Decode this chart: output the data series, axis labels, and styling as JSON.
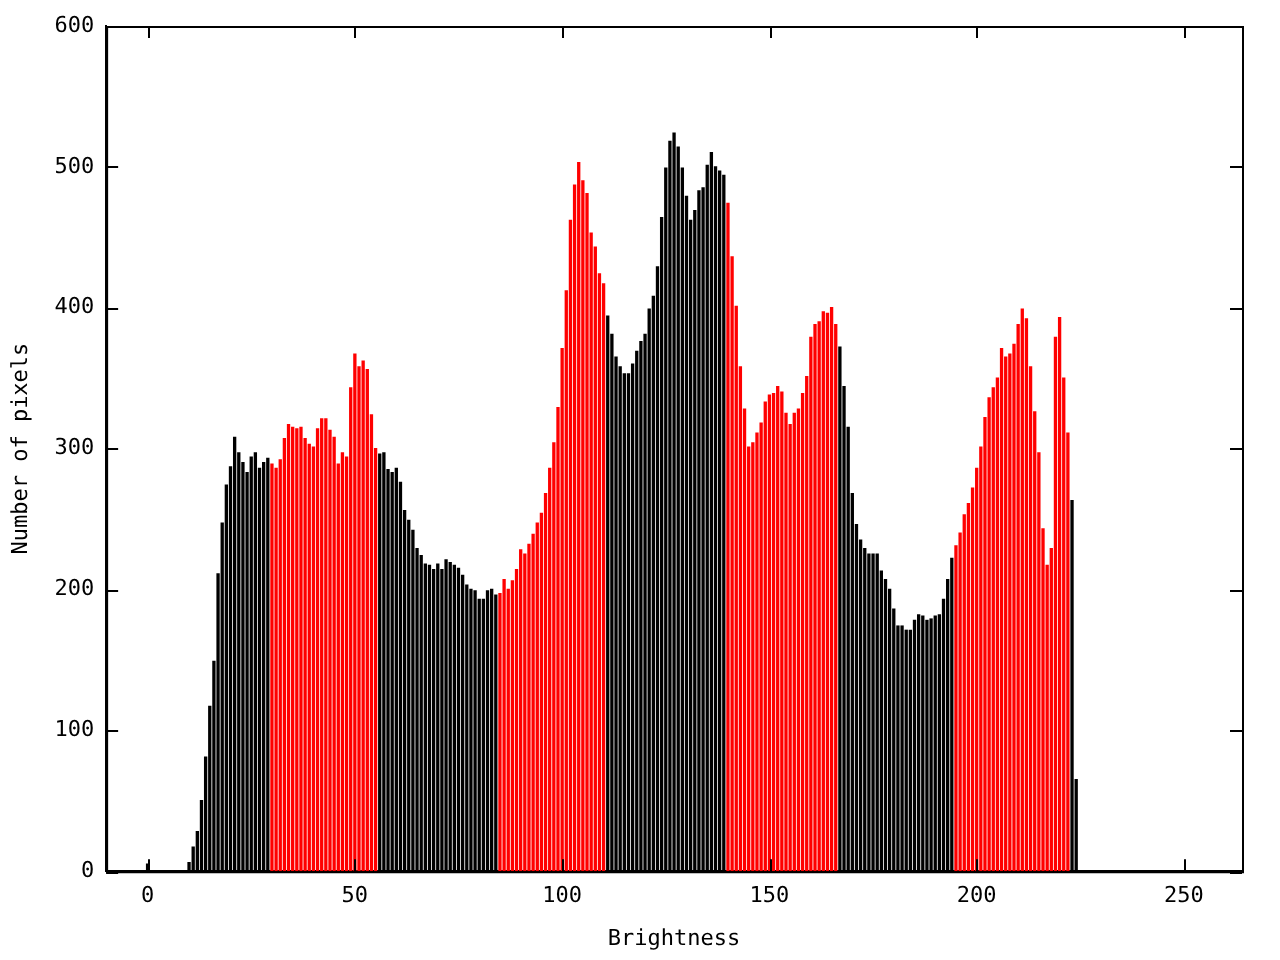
{
  "chart_data": {
    "type": "histogram",
    "xlabel": "Brightness",
    "ylabel": "Number of pixels",
    "xlim": [
      -10,
      264
    ],
    "ylim": [
      0,
      600
    ],
    "xticks": [
      0,
      50,
      100,
      150,
      200,
      250
    ],
    "yticks": [
      0,
      100,
      200,
      300,
      400,
      500,
      600
    ],
    "grid": false,
    "legend": false,
    "bins": [
      0,
      1,
      2,
      3,
      4,
      5,
      6,
      7,
      8,
      9,
      10,
      11,
      12,
      13,
      14,
      15,
      16,
      17,
      18,
      19,
      20,
      21,
      22,
      23,
      24,
      25,
      26,
      27,
      28,
      29,
      30,
      31,
      32,
      33,
      34,
      35,
      36,
      37,
      38,
      39,
      40,
      41,
      42,
      43,
      44,
      45,
      46,
      47,
      48,
      49,
      50,
      51,
      52,
      53,
      54,
      55,
      56,
      57,
      58,
      59,
      60,
      61,
      62,
      63,
      64,
      65,
      66,
      67,
      68,
      69,
      70,
      71,
      72,
      73,
      74,
      75,
      76,
      77,
      78,
      79,
      80,
      81,
      82,
      83,
      84,
      85,
      86,
      87,
      88,
      89,
      90,
      91,
      92,
      93,
      94,
      95,
      96,
      97,
      98,
      99,
      100,
      101,
      102,
      103,
      104,
      105,
      106,
      107,
      108,
      109,
      110,
      111,
      112,
      113,
      114,
      115,
      116,
      117,
      118,
      119,
      120,
      121,
      122,
      123,
      124,
      125,
      126,
      127,
      128,
      129,
      130,
      131,
      132,
      133,
      134,
      135,
      136,
      137,
      138,
      139,
      140,
      141,
      142,
      143,
      144,
      145,
      146,
      147,
      148,
      149,
      150,
      151,
      152,
      153,
      154,
      155,
      156,
      157,
      158,
      159,
      160,
      161,
      162,
      163,
      164,
      165,
      166,
      167,
      168,
      169,
      170,
      171,
      172,
      173,
      174,
      175,
      176,
      177,
      178,
      179,
      180,
      181,
      182,
      183,
      184,
      185,
      186,
      187,
      188,
      189,
      190,
      191,
      192,
      193,
      194,
      195,
      196,
      197,
      198,
      199,
      200,
      201,
      202,
      203,
      204,
      205,
      206,
      207,
      208,
      209,
      210,
      211,
      212,
      213,
      214,
      215,
      216,
      217,
      218,
      219,
      220,
      221,
      222,
      223,
      224,
      225,
      226,
      227,
      228,
      229,
      230,
      231,
      232,
      233,
      234,
      235,
      236,
      237,
      238,
      239,
      240,
      241,
      242,
      243,
      244,
      245,
      246,
      247,
      248,
      249,
      250,
      251,
      252,
      253,
      254,
      255,
      256
    ],
    "values": [
      5,
      0,
      0,
      0,
      0,
      0,
      0,
      0,
      0,
      0,
      6,
      17,
      28,
      50,
      81,
      117,
      149,
      211,
      247,
      274,
      287,
      308,
      297,
      290,
      283,
      294,
      297,
      286,
      290,
      293,
      289,
      286,
      292,
      307,
      317,
      315,
      314,
      315,
      307,
      303,
      301,
      314,
      321,
      321,
      313,
      308,
      289,
      297,
      294,
      343,
      367,
      358,
      362,
      356,
      324,
      300,
      296,
      297,
      285,
      283,
      286,
      276,
      256,
      249,
      242,
      229,
      224,
      218,
      217,
      214,
      218,
      214,
      221,
      219,
      217,
      215,
      210,
      203,
      200,
      199,
      193,
      193,
      199,
      200,
      196,
      197,
      207,
      200,
      206,
      214,
      228,
      225,
      232,
      239,
      247,
      254,
      268,
      286,
      304,
      329,
      371,
      412,
      462,
      487,
      503,
      490,
      481,
      453,
      443,
      424,
      417,
      394,
      381,
      365,
      358,
      353,
      353,
      360,
      369,
      376,
      381,
      399,
      408,
      429,
      464,
      499,
      518,
      524,
      514,
      499,
      479,
      462,
      469,
      483,
      485,
      501,
      510,
      500,
      497,
      494,
      474,
      436,
      401,
      358,
      328,
      301,
      304,
      311,
      318,
      333,
      338,
      339,
      344,
      340,
      325,
      317,
      325,
      328,
      339,
      351,
      379,
      388,
      390,
      397,
      396,
      400,
      388,
      372,
      344,
      315,
      268,
      246,
      235,
      229,
      225,
      225,
      225,
      213,
      207,
      200,
      186,
      174,
      174,
      171,
      171,
      178,
      182,
      181,
      178,
      179,
      181,
      182,
      193,
      207,
      222,
      231,
      240,
      253,
      261,
      272,
      286,
      301,
      322,
      336,
      343,
      350,
      371,
      365,
      367,
      374,
      388,
      399,
      392,
      358,
      326,
      297,
      243,
      217,
      229,
      379,
      393,
      350,
      311,
      263,
      65,
      0,
      0,
      0,
      0,
      0,
      0,
      0,
      0,
      0,
      0,
      0,
      0,
      0,
      0,
      0,
      0,
      0,
      0,
      0,
      0,
      0,
      0,
      0,
      0,
      0,
      0,
      0,
      0,
      0,
      0,
      0
    ],
    "colors": [
      "#000000",
      "#000000",
      "#000000",
      "#000000",
      "#000000",
      "#000000",
      "#000000",
      "#000000",
      "#000000",
      "#000000",
      "#000000",
      "#000000",
      "#000000",
      "#000000",
      "#000000",
      "#000000",
      "#000000",
      "#000000",
      "#000000",
      "#000000",
      "#000000",
      "#000000",
      "#000000",
      "#000000",
      "#000000",
      "#000000",
      "#000000",
      "#000000",
      "#000000",
      "#000000",
      "#ff0000",
      "#ff0000",
      "#ff0000",
      "#ff0000",
      "#ff0000",
      "#ff0000",
      "#ff0000",
      "#ff0000",
      "#ff0000",
      "#ff0000",
      "#ff0000",
      "#ff0000",
      "#ff0000",
      "#ff0000",
      "#ff0000",
      "#ff0000",
      "#ff0000",
      "#ff0000",
      "#ff0000",
      "#ff0000",
      "#ff0000",
      "#ff0000",
      "#ff0000",
      "#ff0000",
      "#ff0000",
      "#ff0000",
      "#000000",
      "#000000",
      "#000000",
      "#000000",
      "#000000",
      "#000000",
      "#000000",
      "#000000",
      "#000000",
      "#000000",
      "#000000",
      "#000000",
      "#000000",
      "#000000",
      "#000000",
      "#000000",
      "#000000",
      "#000000",
      "#000000",
      "#000000",
      "#000000",
      "#000000",
      "#000000",
      "#000000",
      "#000000",
      "#000000",
      "#000000",
      "#000000",
      "#000000",
      "#ff0000",
      "#ff0000",
      "#ff0000",
      "#ff0000",
      "#ff0000",
      "#ff0000",
      "#ff0000",
      "#ff0000",
      "#ff0000",
      "#ff0000",
      "#ff0000",
      "#ff0000",
      "#ff0000",
      "#ff0000",
      "#ff0000",
      "#ff0000",
      "#ff0000",
      "#ff0000",
      "#ff0000",
      "#ff0000",
      "#ff0000",
      "#ff0000",
      "#ff0000",
      "#ff0000",
      "#ff0000",
      "#ff0000",
      "#000000",
      "#000000",
      "#000000",
      "#000000",
      "#000000",
      "#000000",
      "#000000",
      "#000000",
      "#000000",
      "#000000",
      "#000000",
      "#000000",
      "#000000",
      "#000000",
      "#000000",
      "#000000",
      "#000000",
      "#000000",
      "#000000",
      "#000000",
      "#000000",
      "#000000",
      "#000000",
      "#000000",
      "#000000",
      "#000000",
      "#000000",
      "#000000",
      "#000000",
      "#ff0000",
      "#ff0000",
      "#ff0000",
      "#ff0000",
      "#ff0000",
      "#ff0000",
      "#ff0000",
      "#ff0000",
      "#ff0000",
      "#ff0000",
      "#ff0000",
      "#ff0000",
      "#ff0000",
      "#ff0000",
      "#ff0000",
      "#ff0000",
      "#ff0000",
      "#ff0000",
      "#ff0000",
      "#ff0000",
      "#ff0000",
      "#ff0000",
      "#ff0000",
      "#ff0000",
      "#ff0000",
      "#ff0000",
      "#ff0000",
      "#000000",
      "#000000",
      "#000000",
      "#000000",
      "#000000",
      "#000000",
      "#000000",
      "#000000",
      "#000000",
      "#000000",
      "#000000",
      "#000000",
      "#000000",
      "#000000",
      "#000000",
      "#000000",
      "#000000",
      "#000000",
      "#000000",
      "#000000",
      "#000000",
      "#000000",
      "#000000",
      "#000000",
      "#000000",
      "#000000",
      "#000000",
      "#000000",
      "#ff0000",
      "#ff0000",
      "#ff0000",
      "#ff0000",
      "#ff0000",
      "#ff0000",
      "#ff0000",
      "#ff0000",
      "#ff0000",
      "#ff0000",
      "#ff0000",
      "#ff0000",
      "#ff0000",
      "#ff0000",
      "#ff0000",
      "#ff0000",
      "#ff0000",
      "#ff0000",
      "#ff0000",
      "#ff0000",
      "#ff0000",
      "#ff0000",
      "#ff0000",
      "#ff0000",
      "#ff0000",
      "#ff0000",
      "#ff0000",
      "#ff0000",
      "#000000",
      "#000000",
      "#000000",
      "#000000",
      "#000000",
      "#000000",
      "#000000",
      "#000000",
      "#000000",
      "#000000",
      "#000000",
      "#000000",
      "#000000",
      "#000000",
      "#000000",
      "#000000",
      "#000000",
      "#000000",
      "#000000",
      "#000000",
      "#000000",
      "#000000",
      "#000000",
      "#000000",
      "#000000",
      "#000000",
      "#000000",
      "#000000",
      "#000000",
      "#000000",
      "#000000",
      "#000000",
      "#000000"
    ]
  }
}
